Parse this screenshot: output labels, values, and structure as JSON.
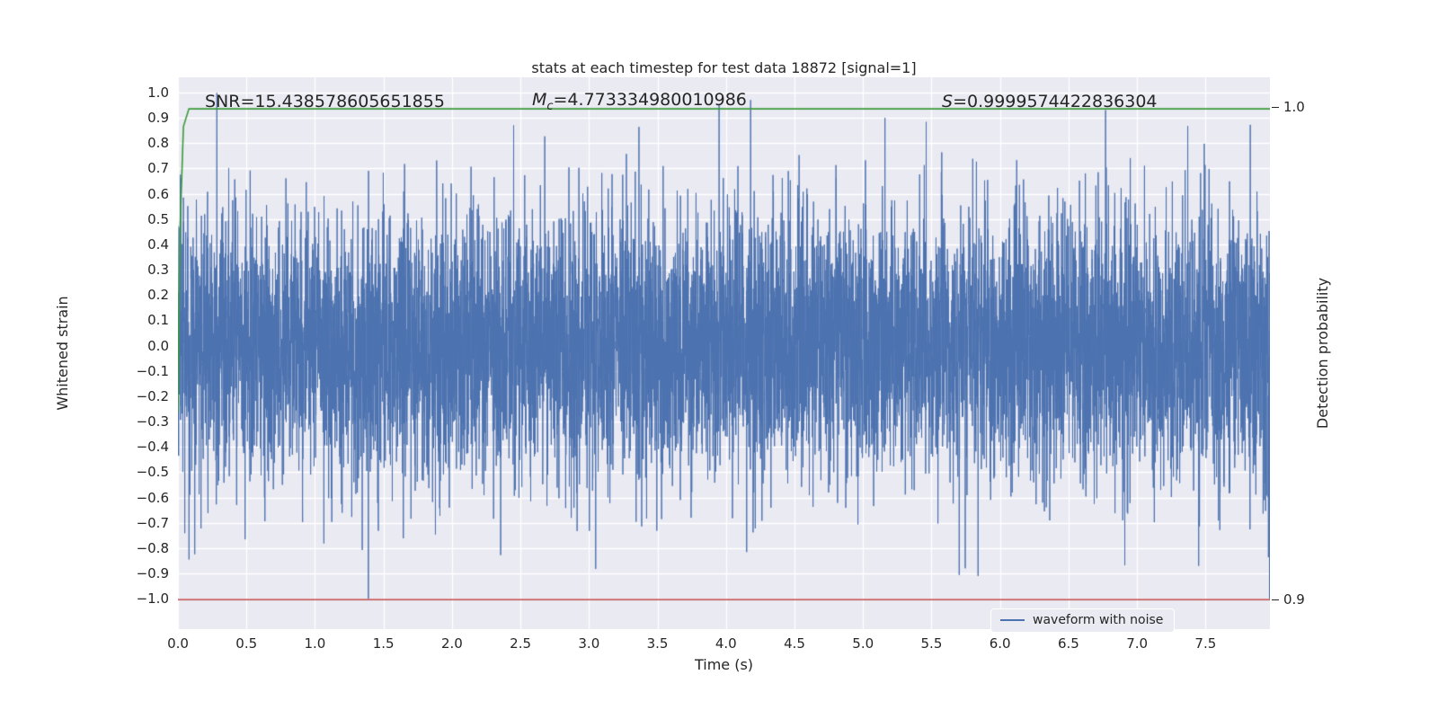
{
  "chart_data": {
    "type": "line",
    "title": "stats at each timestep for test data 18872 [signal=1]",
    "xlabel": "Time (s)",
    "ylabel_left": "Whitened strain",
    "ylabel_right": "Detection probability",
    "xlim": [
      0.0,
      7.97
    ],
    "ylim_left": [
      -1.12,
      1.06
    ],
    "ylim_right": [
      0.894,
      1.006
    ],
    "x_ticks": [
      {
        "v": 0.0,
        "label": "0.0"
      },
      {
        "v": 0.5,
        "label": "0.5"
      },
      {
        "v": 1.0,
        "label": "1.0"
      },
      {
        "v": 1.5,
        "label": "1.5"
      },
      {
        "v": 2.0,
        "label": "2.0"
      },
      {
        "v": 2.5,
        "label": "2.5"
      },
      {
        "v": 3.0,
        "label": "3.0"
      },
      {
        "v": 3.5,
        "label": "3.5"
      },
      {
        "v": 4.0,
        "label": "4.0"
      },
      {
        "v": 4.5,
        "label": "4.5"
      },
      {
        "v": 5.0,
        "label": "5.0"
      },
      {
        "v": 5.5,
        "label": "5.5"
      },
      {
        "v": 6.0,
        "label": "6.0"
      },
      {
        "v": 6.5,
        "label": "6.5"
      },
      {
        "v": 7.0,
        "label": "7.0"
      },
      {
        "v": 7.5,
        "label": "7.5"
      }
    ],
    "y_ticks_left": [
      {
        "v": 1.0,
        "label": "1.0"
      },
      {
        "v": 0.9,
        "label": "0.9"
      },
      {
        "v": 0.8,
        "label": "0.8"
      },
      {
        "v": 0.7,
        "label": "0.7"
      },
      {
        "v": 0.6,
        "label": "0.6"
      },
      {
        "v": 0.5,
        "label": "0.5"
      },
      {
        "v": 0.4,
        "label": "0.4"
      },
      {
        "v": 0.3,
        "label": "0.3"
      },
      {
        "v": 0.2,
        "label": "0.2"
      },
      {
        "v": 0.1,
        "label": "0.1"
      },
      {
        "v": 0.0,
        "label": "0.0"
      },
      {
        "v": -0.1,
        "label": "−0.1"
      },
      {
        "v": -0.2,
        "label": "−0.2"
      },
      {
        "v": -0.3,
        "label": "−0.3"
      },
      {
        "v": -0.4,
        "label": "−0.4"
      },
      {
        "v": -0.5,
        "label": "−0.5"
      },
      {
        "v": -0.6,
        "label": "−0.6"
      },
      {
        "v": -0.7,
        "label": "−0.7"
      },
      {
        "v": -0.8,
        "label": "−0.8"
      },
      {
        "v": -0.9,
        "label": "−0.9"
      },
      {
        "v": -1.0,
        "label": "−1.0"
      }
    ],
    "y_ticks_right": [
      {
        "v": 1.0,
        "label": "1.0"
      },
      {
        "v": 0.9,
        "label": "0.9"
      }
    ],
    "annotations": [
      {
        "label": "SNR",
        "sub": "",
        "value": "=15.438578605651855"
      },
      {
        "label": "M",
        "sub": "c",
        "value": "=4.773334980010986"
      },
      {
        "label": "S",
        "sub": "",
        "value": "=0.9999574422836304"
      }
    ],
    "series": [
      {
        "name": "waveform with noise",
        "axis": "left",
        "color": "#4c72b0",
        "width": 1,
        "style": "gaussian_noise",
        "seed": 18872,
        "sigma": 0.26,
        "n_points": 8000,
        "x_start": 0.0,
        "x_end": 7.97,
        "spikes": [
          {
            "x": 1.39,
            "y": -1.0
          },
          {
            "x": 2.45,
            "y": 0.87
          },
          {
            "x": 3.95,
            "y": 0.95
          },
          {
            "x": 4.18,
            "y": 0.97
          },
          {
            "x": 5.16,
            "y": 0.9
          },
          {
            "x": 6.77,
            "y": 0.93
          },
          {
            "x": 0.02,
            "y": 0.66
          },
          {
            "x": 5.84,
            "y": -0.91
          },
          {
            "x": 7.45,
            "y": -0.87
          }
        ]
      },
      {
        "name": "detection probability",
        "axis": "right",
        "color": "#3a9a3a",
        "width": 1.6,
        "points": [
          [
            0.0,
            0.938
          ],
          [
            0.015,
            0.975
          ],
          [
            0.04,
            0.996
          ],
          [
            0.08,
            0.9996
          ],
          [
            7.97,
            0.9996
          ]
        ]
      },
      {
        "name": "detection threshold",
        "axis": "right",
        "color": "#b22222",
        "width": 1.3,
        "points": [
          [
            0.0,
            0.9
          ],
          [
            7.97,
            0.9
          ]
        ]
      }
    ],
    "legend": {
      "entries": [
        {
          "label": "waveform with noise",
          "color": "#4c72b0"
        }
      ]
    },
    "colors": {
      "figure_background": "#ffffff",
      "axes_background": "#eaeaf2",
      "grid": "#ffffff",
      "text": "#262626",
      "waveform": "#4c72b0",
      "detection": "#3a9a3a",
      "threshold": "#b22222"
    }
  }
}
